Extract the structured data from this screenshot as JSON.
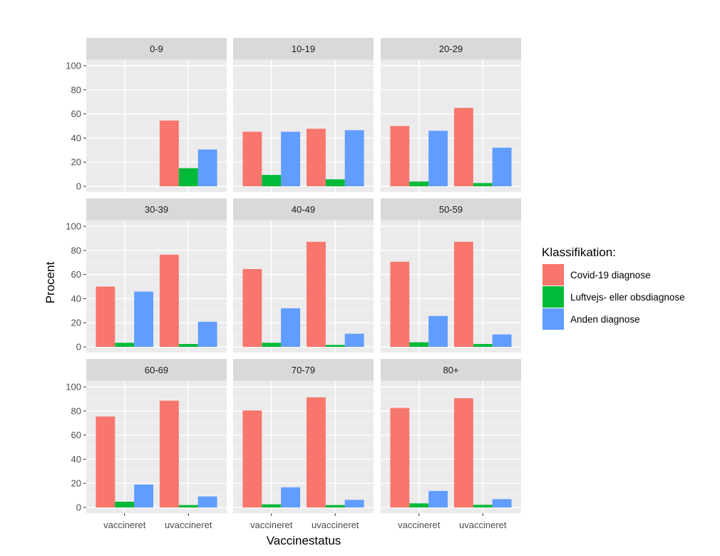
{
  "chart_data": {
    "type": "bar",
    "layout": "facet-grid-3x3",
    "xlabel": "Vaccinestatus",
    "ylabel": "Procent",
    "ylim": [
      0,
      100
    ],
    "yticks": [
      0,
      20,
      40,
      60,
      80,
      100
    ],
    "grid": true,
    "categories": [
      "vaccineret",
      "uvaccineret"
    ],
    "legend": {
      "title": "Klassifikation:",
      "position": "right",
      "entries": [
        {
          "name": "Covid-19 diagnose",
          "color": "#F8766D"
        },
        {
          "name": "Luftvejs- eller obsdiagnose",
          "color": "#00BA38"
        },
        {
          "name": "Anden diagnose",
          "color": "#619CFF"
        }
      ]
    },
    "facets": [
      {
        "label": "0-9",
        "series": [
          {
            "name": "Covid-19 diagnose",
            "values": [
              null,
              54.5
            ]
          },
          {
            "name": "Luftvejs- eller obsdiagnose",
            "values": [
              null,
              15.0
            ]
          },
          {
            "name": "Anden diagnose",
            "values": [
              null,
              30.5
            ]
          }
        ]
      },
      {
        "label": "10-19",
        "series": [
          {
            "name": "Covid-19 diagnose",
            "values": [
              45.2,
              47.7
            ]
          },
          {
            "name": "Luftvejs- eller obsdiagnose",
            "values": [
              9.4,
              5.8
            ]
          },
          {
            "name": "Anden diagnose",
            "values": [
              45.2,
              46.5
            ]
          }
        ]
      },
      {
        "label": "20-29",
        "series": [
          {
            "name": "Covid-19 diagnose",
            "values": [
              50.0,
              65.0
            ]
          },
          {
            "name": "Luftvejs- eller obsdiagnose",
            "values": [
              3.9,
              2.7
            ]
          },
          {
            "name": "Anden diagnose",
            "values": [
              46.0,
              32.0
            ]
          }
        ]
      },
      {
        "label": "30-39",
        "series": [
          {
            "name": "Covid-19 diagnose",
            "values": [
              50.0,
              76.4
            ]
          },
          {
            "name": "Luftvejs- eller obsdiagnose",
            "values": [
              3.4,
              2.4
            ]
          },
          {
            "name": "Anden diagnose",
            "values": [
              45.8,
              20.8
            ]
          }
        ]
      },
      {
        "label": "40-49",
        "series": [
          {
            "name": "Covid-19 diagnose",
            "values": [
              64.5,
              87.1
            ]
          },
          {
            "name": "Luftvejs- eller obsdiagnose",
            "values": [
              3.4,
              1.6
            ]
          },
          {
            "name": "Anden diagnose",
            "values": [
              32.0,
              10.9
            ]
          }
        ]
      },
      {
        "label": "50-59",
        "series": [
          {
            "name": "Covid-19 diagnose",
            "values": [
              70.6,
              87.1
            ]
          },
          {
            "name": "Luftvejs- eller obsdiagnose",
            "values": [
              3.8,
              2.4
            ]
          },
          {
            "name": "Anden diagnose",
            "values": [
              25.6,
              10.3
            ]
          }
        ]
      },
      {
        "label": "60-69",
        "series": [
          {
            "name": "Covid-19 diagnose",
            "values": [
              75.4,
              88.5
            ]
          },
          {
            "name": "Luftvejs- eller obsdiagnose",
            "values": [
              4.8,
              2.0
            ]
          },
          {
            "name": "Anden diagnose",
            "values": [
              19.0,
              9.1
            ]
          }
        ]
      },
      {
        "label": "70-79",
        "series": [
          {
            "name": "Covid-19 diagnose",
            "values": [
              80.4,
              91.3
            ]
          },
          {
            "name": "Luftvejs- eller obsdiagnose",
            "values": [
              2.6,
              2.0
            ]
          },
          {
            "name": "Anden diagnose",
            "values": [
              16.7,
              6.3
            ]
          }
        ]
      },
      {
        "label": "80+",
        "series": [
          {
            "name": "Covid-19 diagnose",
            "values": [
              82.5,
              90.5
            ]
          },
          {
            "name": "Luftvejs- eller obsdiagnose",
            "values": [
              3.4,
              2.2
            ]
          },
          {
            "name": "Anden diagnose",
            "values": [
              13.7,
              6.9
            ]
          }
        ]
      }
    ]
  }
}
